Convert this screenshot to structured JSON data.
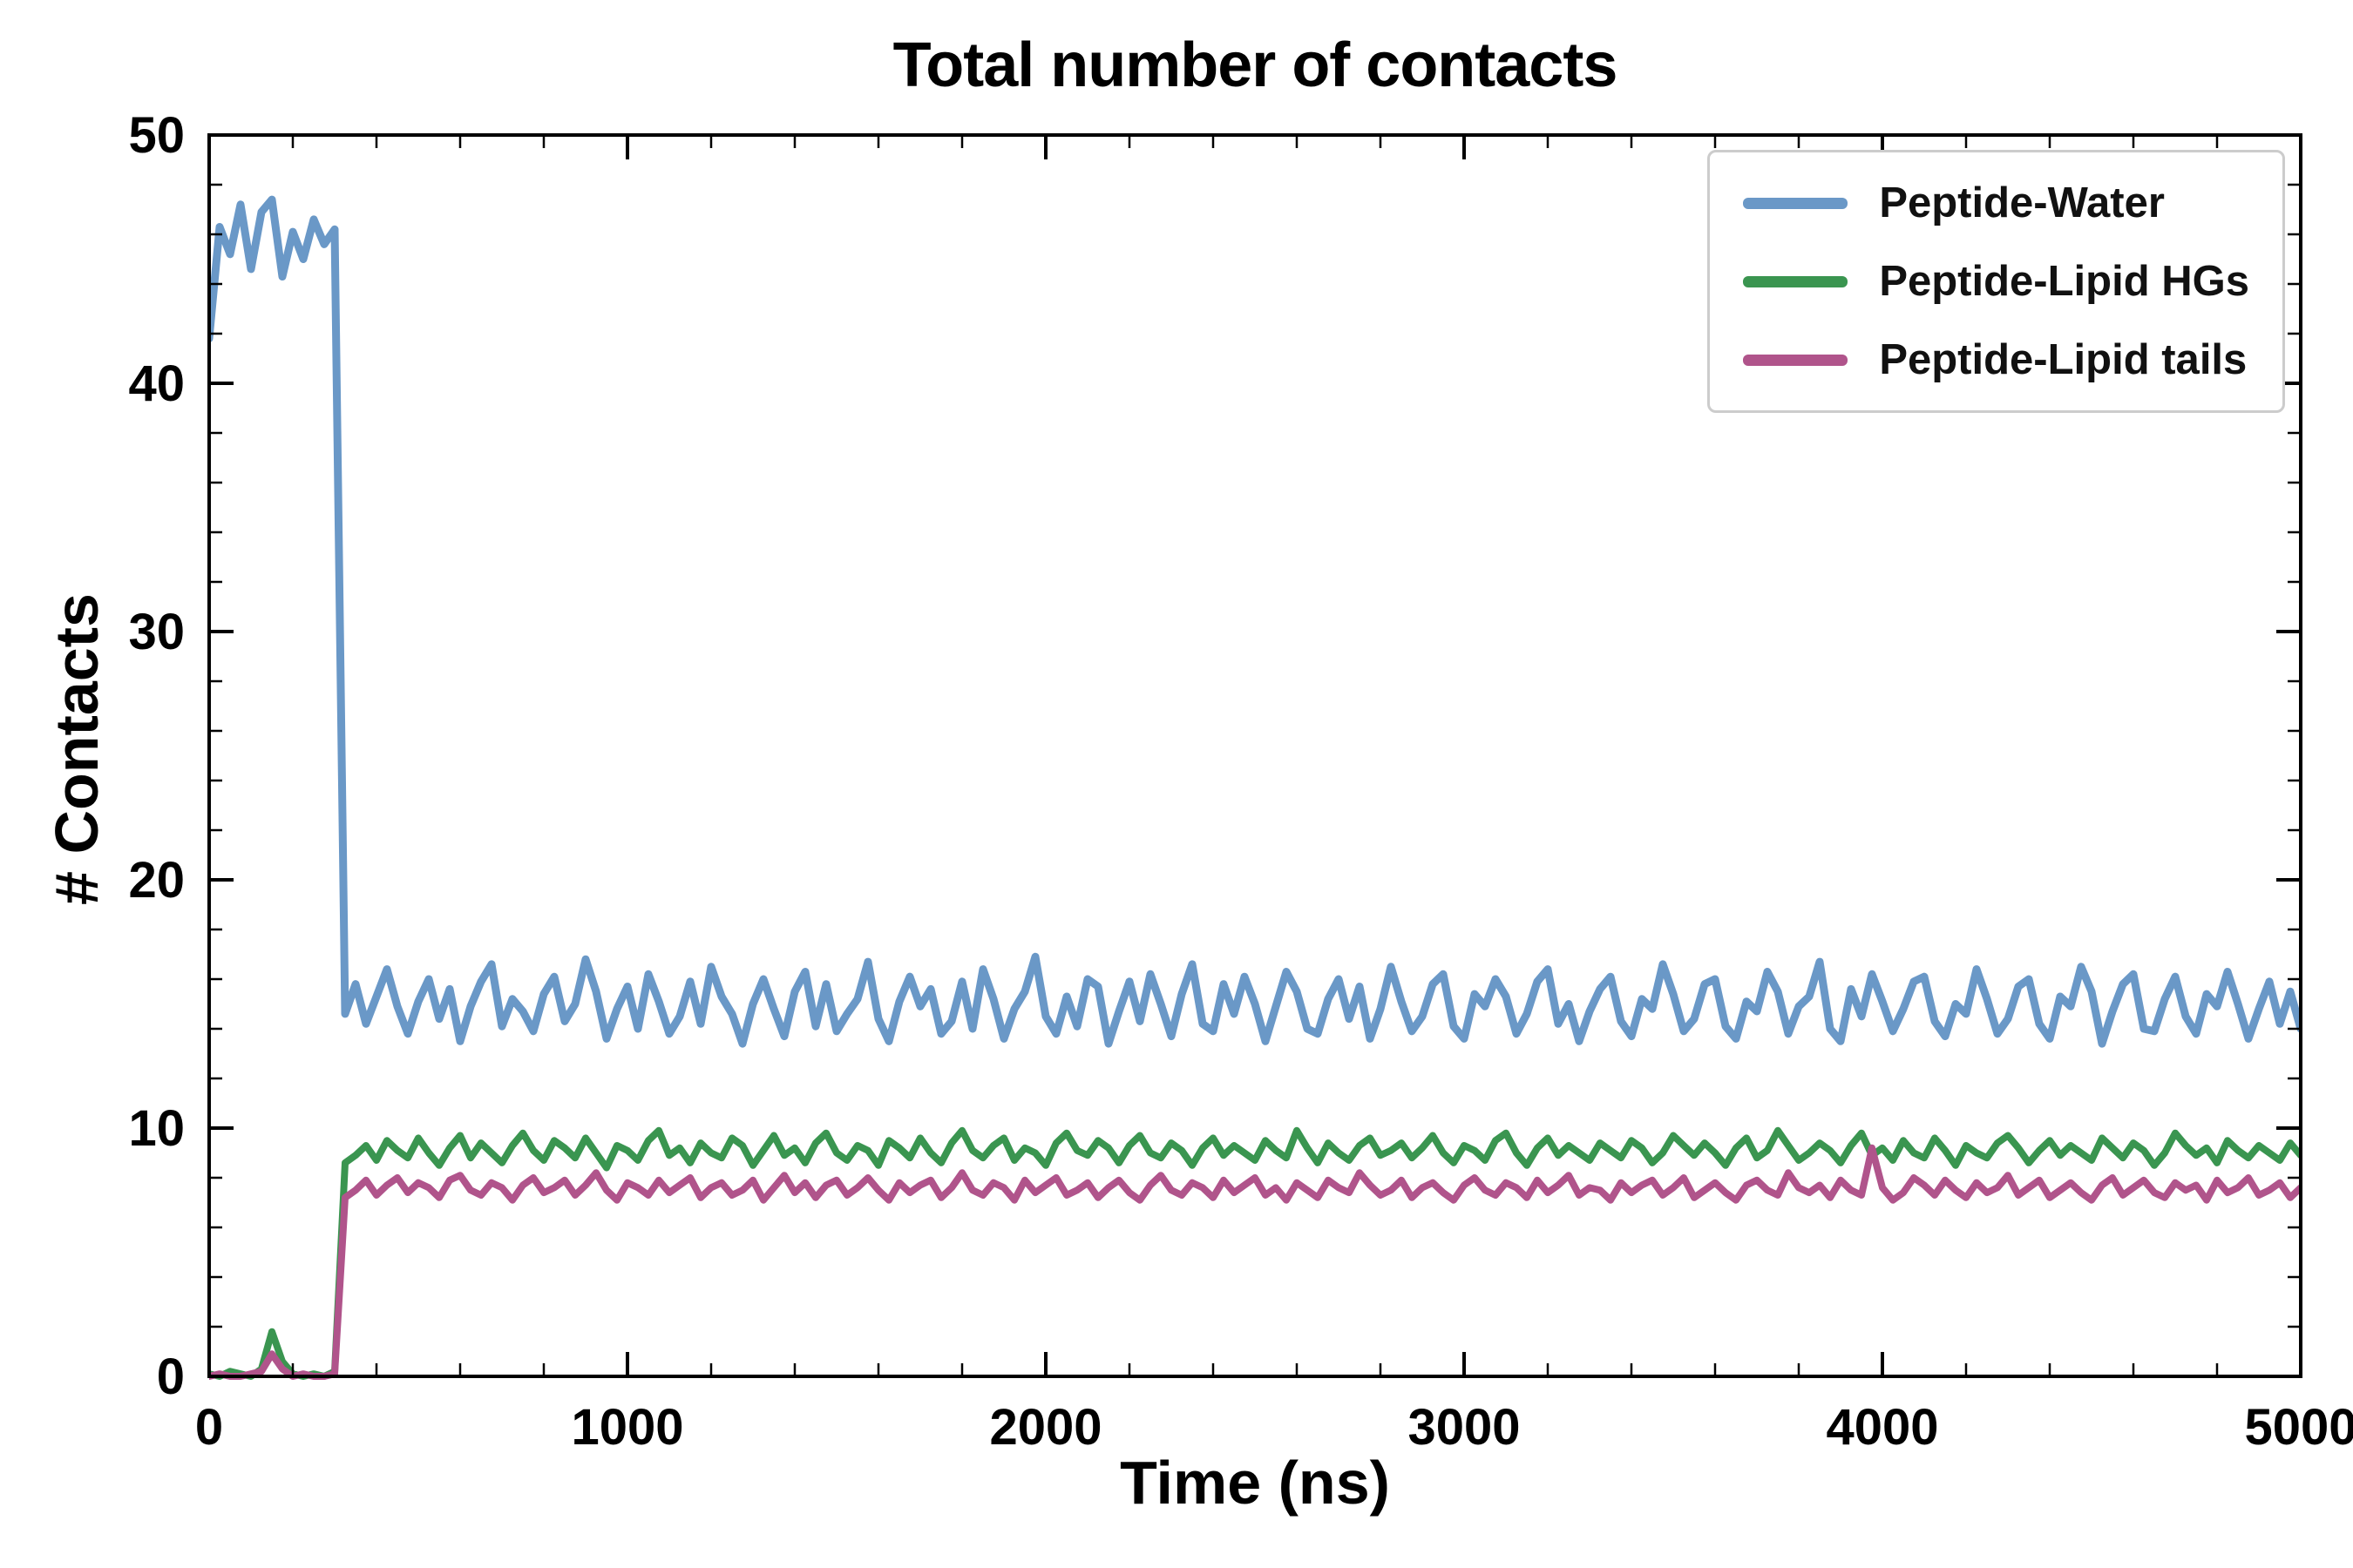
{
  "chart_data": {
    "type": "line",
    "title": "Total number of contacts",
    "xlabel": "Time (ns)",
    "ylabel": "# Contacts",
    "xlim": [
      0,
      5000
    ],
    "ylim": [
      0,
      50
    ],
    "x_ticks": [
      0,
      1000,
      2000,
      3000,
      4000,
      5000
    ],
    "y_ticks": [
      0,
      10,
      20,
      30,
      40,
      50
    ],
    "x_minor_step": 200,
    "y_minor_step": 2,
    "grid": false,
    "legend_position": "upper right",
    "x_start": 0,
    "x_step": 25,
    "series": [
      {
        "name": "Peptide-Water",
        "color": "#6a98c7",
        "values": [
          41.8,
          46.3,
          45.2,
          47.2,
          44.6,
          46.9,
          47.4,
          44.3,
          46.1,
          45.0,
          46.6,
          45.6,
          46.2,
          14.6,
          15.8,
          14.2,
          15.3,
          16.4,
          14.9,
          13.8,
          15.1,
          16.0,
          14.4,
          15.6,
          13.5,
          14.9,
          15.9,
          16.6,
          14.1,
          15.2,
          14.7,
          13.9,
          15.4,
          16.1,
          14.3,
          15.0,
          16.8,
          15.5,
          13.6,
          14.8,
          15.7,
          14.0,
          16.2,
          15.1,
          13.8,
          14.5,
          15.9,
          14.2,
          16.5,
          15.3,
          14.6,
          13.4,
          15.0,
          16.0,
          14.8,
          13.7,
          15.5,
          16.3,
          14.1,
          15.8,
          13.9,
          14.6,
          15.2,
          16.7,
          14.4,
          13.5,
          15.1,
          16.1,
          14.9,
          15.6,
          13.8,
          14.3,
          15.9,
          14.0,
          16.4,
          15.2,
          13.6,
          14.8,
          15.5,
          16.9,
          14.5,
          13.8,
          15.3,
          14.1,
          16.0,
          15.7,
          13.4,
          14.7,
          15.9,
          14.3,
          16.2,
          15.0,
          13.7,
          15.4,
          16.6,
          14.2,
          13.9,
          15.8,
          14.6,
          16.1,
          15.0,
          13.5,
          14.9,
          16.3,
          15.5,
          14.0,
          13.8,
          15.2,
          16.0,
          14.4,
          15.7,
          13.6,
          14.8,
          16.5,
          15.1,
          13.9,
          14.5,
          15.8,
          16.2,
          14.1,
          13.6,
          15.4,
          14.9,
          16.0,
          15.3,
          13.8,
          14.6,
          15.9,
          16.4,
          14.2,
          15.0,
          13.5,
          14.7,
          15.6,
          16.1,
          14.3,
          13.7,
          15.2,
          14.8,
          16.6,
          15.4,
          13.9,
          14.4,
          15.8,
          16.0,
          14.1,
          13.6,
          15.1,
          14.7,
          16.3,
          15.5,
          13.8,
          14.9,
          15.3,
          16.7,
          14.0,
          13.5,
          15.6,
          14.5,
          16.2,
          15.1,
          13.9,
          14.8,
          15.9,
          16.1,
          14.3,
          13.7,
          15.0,
          14.6,
          16.4,
          15.2,
          13.8,
          14.4,
          15.7,
          16.0,
          14.2,
          13.6,
          15.3,
          14.9,
          16.5,
          15.5,
          13.4,
          14.7,
          15.8,
          16.2,
          14.0,
          13.9,
          15.2,
          16.1,
          14.5,
          13.8,
          15.4,
          14.9,
          16.3,
          15.0,
          13.6,
          14.8,
          15.9,
          14.2,
          15.5,
          14.0
        ]
      },
      {
        "name": "Peptide-Lipid HGs",
        "color": "#3a9550",
        "values": [
          0.1,
          0.0,
          0.2,
          0.1,
          0.0,
          0.3,
          1.8,
          0.6,
          0.1,
          0.0,
          0.1,
          0.0,
          0.2,
          8.6,
          8.9,
          9.3,
          8.7,
          9.5,
          9.1,
          8.8,
          9.6,
          9.0,
          8.5,
          9.2,
          9.7,
          8.8,
          9.4,
          9.0,
          8.6,
          9.3,
          9.8,
          9.1,
          8.7,
          9.5,
          9.2,
          8.8,
          9.6,
          9.0,
          8.4,
          9.3,
          9.1,
          8.7,
          9.5,
          9.9,
          8.9,
          9.2,
          8.6,
          9.4,
          9.0,
          8.8,
          9.6,
          9.3,
          8.5,
          9.1,
          9.7,
          8.9,
          9.2,
          8.6,
          9.4,
          9.8,
          9.0,
          8.7,
          9.3,
          9.1,
          8.5,
          9.5,
          9.2,
          8.8,
          9.6,
          9.0,
          8.6,
          9.4,
          9.9,
          9.1,
          8.8,
          9.3,
          9.6,
          8.7,
          9.2,
          9.0,
          8.5,
          9.4,
          9.8,
          9.1,
          8.9,
          9.5,
          9.2,
          8.6,
          9.3,
          9.7,
          9.0,
          8.8,
          9.4,
          9.1,
          8.5,
          9.2,
          9.6,
          8.9,
          9.3,
          9.0,
          8.7,
          9.5,
          9.1,
          8.8,
          9.9,
          9.2,
          8.6,
          9.4,
          9.0,
          8.7,
          9.3,
          9.6,
          8.9,
          9.1,
          9.4,
          8.8,
          9.2,
          9.7,
          9.0,
          8.6,
          9.3,
          9.1,
          8.7,
          9.5,
          9.8,
          9.0,
          8.5,
          9.2,
          9.6,
          8.9,
          9.3,
          9.0,
          8.7,
          9.4,
          9.1,
          8.8,
          9.5,
          9.2,
          8.6,
          9.0,
          9.7,
          9.3,
          8.9,
          9.4,
          9.0,
          8.5,
          9.2,
          9.6,
          8.8,
          9.1,
          9.9,
          9.3,
          8.7,
          9.0,
          9.4,
          9.1,
          8.6,
          9.3,
          9.8,
          8.9,
          9.2,
          8.7,
          9.5,
          9.0,
          8.8,
          9.6,
          9.1,
          8.5,
          9.3,
          9.0,
          8.8,
          9.4,
          9.7,
          9.2,
          8.6,
          9.1,
          9.5,
          8.9,
          9.3,
          9.0,
          8.7,
          9.6,
          9.2,
          8.8,
          9.4,
          9.1,
          8.5,
          9.0,
          9.8,
          9.3,
          8.9,
          9.2,
          8.6,
          9.5,
          9.1,
          8.8,
          9.3,
          9.0,
          8.7,
          9.4,
          8.9
        ]
      },
      {
        "name": "Peptide-Lipid tails",
        "color": "#b0548b",
        "values": [
          0.0,
          0.1,
          0.0,
          0.0,
          0.1,
          0.2,
          0.9,
          0.3,
          0.0,
          0.1,
          0.0,
          0.0,
          0.1,
          7.2,
          7.5,
          7.9,
          7.3,
          7.7,
          8.0,
          7.4,
          7.8,
          7.6,
          7.2,
          7.9,
          8.1,
          7.5,
          7.3,
          7.8,
          7.6,
          7.1,
          7.7,
          8.0,
          7.4,
          7.6,
          7.9,
          7.3,
          7.7,
          8.2,
          7.5,
          7.1,
          7.8,
          7.6,
          7.3,
          7.9,
          7.4,
          7.7,
          8.0,
          7.2,
          7.6,
          7.8,
          7.3,
          7.5,
          7.9,
          7.1,
          7.6,
          8.1,
          7.4,
          7.8,
          7.2,
          7.7,
          7.9,
          7.3,
          7.6,
          8.0,
          7.5,
          7.1,
          7.8,
          7.4,
          7.7,
          7.9,
          7.2,
          7.6,
          8.2,
          7.5,
          7.3,
          7.8,
          7.6,
          7.1,
          7.9,
          7.4,
          7.7,
          8.0,
          7.3,
          7.5,
          7.8,
          7.2,
          7.6,
          7.9,
          7.4,
          7.1,
          7.7,
          8.1,
          7.5,
          7.3,
          7.8,
          7.6,
          7.2,
          7.9,
          7.4,
          7.7,
          8.0,
          7.3,
          7.6,
          7.1,
          7.8,
          7.5,
          7.2,
          7.9,
          7.6,
          7.4,
          8.2,
          7.7,
          7.3,
          7.5,
          7.9,
          7.2,
          7.6,
          7.8,
          7.4,
          7.1,
          7.7,
          8.0,
          7.5,
          7.3,
          7.8,
          7.6,
          7.2,
          7.9,
          7.4,
          7.7,
          8.1,
          7.3,
          7.6,
          7.5,
          7.1,
          7.8,
          7.4,
          7.7,
          7.9,
          7.3,
          7.6,
          8.0,
          7.2,
          7.5,
          7.8,
          7.4,
          7.1,
          7.7,
          7.9,
          7.5,
          7.3,
          8.2,
          7.6,
          7.4,
          7.7,
          7.2,
          7.9,
          7.5,
          7.3,
          9.2,
          7.6,
          7.1,
          7.4,
          8.0,
          7.7,
          7.3,
          7.9,
          7.5,
          7.2,
          7.8,
          7.4,
          7.6,
          8.1,
          7.3,
          7.6,
          7.9,
          7.2,
          7.5,
          7.8,
          7.4,
          7.1,
          7.7,
          8.0,
          7.3,
          7.6,
          7.9,
          7.4,
          7.2,
          7.8,
          7.5,
          7.7,
          7.1,
          7.9,
          7.4,
          7.6,
          8.0,
          7.3,
          7.5,
          7.8,
          7.2,
          7.6
        ]
      }
    ]
  }
}
